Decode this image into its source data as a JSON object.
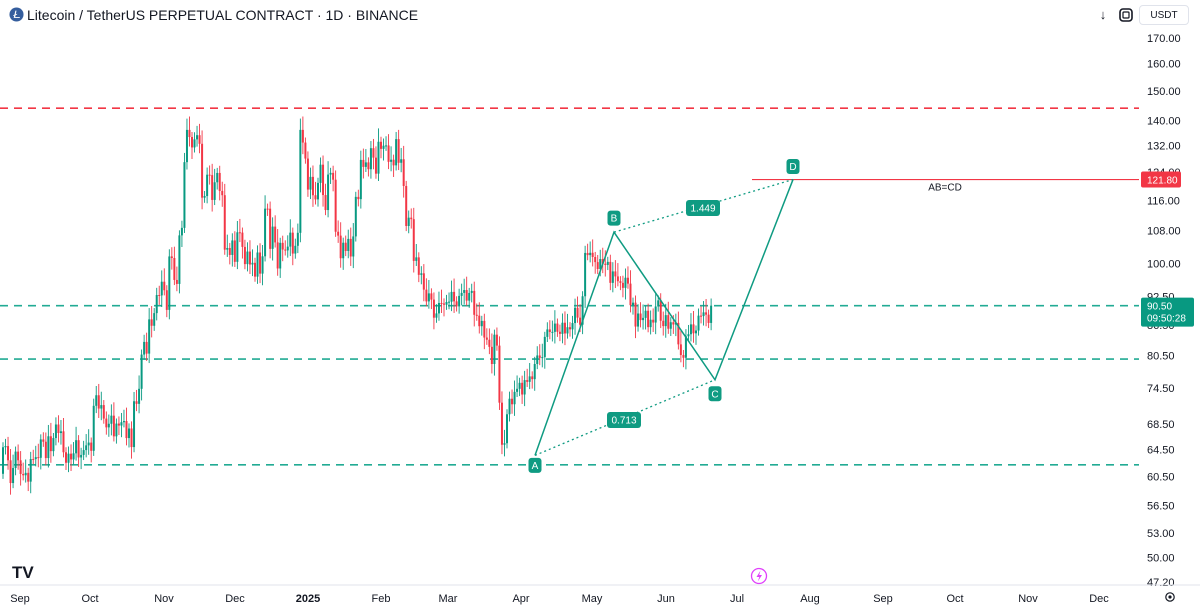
{
  "header": {
    "title": "Litecoin / TetherUS PERPETUAL CONTRACT · 1D · BINANCE",
    "arrow_button": "↓",
    "currency": "USDT"
  },
  "chart_data": {
    "type": "candlestick",
    "title": "Litecoin / TetherUS PERPETUAL CONTRACT · 1D · BINANCE",
    "price_axis": {
      "scale": "log",
      "range": [
        47.2,
        170.0
      ],
      "ticks": [
        "170.00",
        "160.00",
        "150.00",
        "140.00",
        "132.00",
        "124.00",
        "116.00",
        "108.00",
        "100.00",
        "92.50",
        "86.50",
        "80.50",
        "74.50",
        "68.50",
        "64.50",
        "60.50",
        "56.50",
        "53.00",
        "50.00",
        "47.20"
      ]
    },
    "time_axis": {
      "ticks": [
        "Sep",
        "Oct",
        "Nov",
        "Dec",
        "2025",
        "Feb",
        "Mar",
        "Apr",
        "May",
        "Jun",
        "Jul",
        "Aug",
        "Sep",
        "Oct",
        "Nov",
        "Dec"
      ]
    },
    "series": [
      {
        "type": "candles",
        "points": [
          [
            60.9,
            64.83
          ],
          [
            64.83,
            65.01
          ],
          [
            65.01,
            62.87
          ],
          [
            62.87,
            59.59
          ],
          [
            59.59,
            61.74
          ],
          [
            61.74,
            64.17
          ],
          [
            64.17,
            62.87
          ],
          [
            62.87,
            60.88
          ],
          [
            60.88,
            60.69
          ],
          [
            60.69,
            61.04
          ],
          [
            61.04,
            59.79
          ],
          [
            59.79,
            63.06
          ],
          [
            63.06,
            63.05
          ],
          [
            63.05,
            63.34
          ],
          [
            63.34,
            63.24
          ],
          [
            63.24,
            66.04
          ],
          [
            66.04,
            65.68
          ],
          [
            65.68,
            63.2
          ],
          [
            63.2,
            66.53
          ],
          [
            66.53,
            64.24
          ],
          [
            64.24,
            66.25
          ],
          [
            66.25,
            68.4
          ],
          [
            68.4,
            67.04
          ],
          [
            67.04,
            67.31
          ],
          [
            67.31,
            64.07
          ],
          [
            64.07,
            62.51
          ],
          [
            62.51,
            63.86
          ],
          [
            63.86,
            63.0
          ],
          [
            63.0,
            63.91
          ],
          [
            63.91,
            65.92
          ],
          [
            65.92,
            63.29
          ],
          [
            63.29,
            63.67
          ],
          [
            63.67,
            64.4
          ],
          [
            64.4,
            65.12
          ],
          [
            65.12,
            65.55
          ],
          [
            65.55,
            64.29
          ],
          [
            64.29,
            71.48
          ],
          [
            71.48,
            73.28
          ],
          [
            73.28,
            71.02
          ],
          [
            71.02,
            71.6
          ],
          [
            71.6,
            69.36
          ],
          [
            69.36,
            67.94
          ],
          [
            67.94,
            68.52
          ],
          [
            68.52,
            69.84
          ],
          [
            69.84,
            66.52
          ],
          [
            66.52,
            68.55
          ],
          [
            68.55,
            68.23
          ],
          [
            68.23,
            68.77
          ],
          [
            68.77,
            68.96
          ],
          [
            68.96,
            66.25
          ],
          [
            66.25,
            67.76
          ],
          [
            67.76,
            64.86
          ],
          [
            64.86,
            72.25
          ],
          [
            72.25,
            71.81
          ],
          [
            71.81,
            74.4
          ],
          [
            74.4,
            80.65
          ],
          [
            80.65,
            83.09
          ],
          [
            83.09,
            80.83
          ],
          [
            80.83,
            87.62
          ],
          [
            87.62,
            86.31
          ],
          [
            86.31,
            88.92
          ],
          [
            88.92,
            92.8
          ],
          [
            92.8,
            92.71
          ],
          [
            92.71,
            95.75
          ],
          [
            95.75,
            93.84
          ],
          [
            93.84,
            89.6
          ],
          [
            89.6,
            101.62
          ],
          [
            101.62,
            101.25
          ],
          [
            101.25,
            96.15
          ],
          [
            96.15,
            95.25
          ],
          [
            95.25,
            106.79
          ],
          [
            106.79,
            108.7
          ],
          [
            108.7,
            126.89
          ],
          [
            126.89,
            136.91
          ],
          [
            136.91,
            134.63
          ],
          [
            134.63,
            131.37
          ],
          [
            131.37,
            133.89
          ],
          [
            133.89,
            135.22
          ],
          [
            135.22,
            132.5
          ],
          [
            132.5,
            116.71
          ],
          [
            116.71,
            117.16
          ],
          [
            117.16,
            123.2
          ],
          [
            123.2,
            123.07
          ],
          [
            123.07,
            116.09
          ],
          [
            116.09,
            121.02
          ],
          [
            121.02,
            123.71
          ],
          [
            123.71,
            118.57
          ],
          [
            118.57,
            117.39
          ],
          [
            117.39,
            103.26
          ],
          [
            103.26,
            103.66
          ],
          [
            103.66,
            101.98
          ],
          [
            101.98,
            105.52
          ],
          [
            105.52,
            100.34
          ],
          [
            100.34,
            107.57
          ],
          [
            107.57,
            107.49
          ],
          [
            107.49,
            103.93
          ],
          [
            103.93,
            99.8
          ],
          [
            99.8,
            102.8
          ],
          [
            102.8,
            99.71
          ],
          [
            99.71,
            100.11
          ],
          [
            100.11,
            96.9
          ],
          [
            96.9,
            102.57
          ],
          [
            102.57,
            97.59
          ],
          [
            97.59,
            101.65
          ],
          [
            101.65,
            113.73
          ],
          [
            113.73,
            113.72
          ],
          [
            113.72,
            103.45
          ],
          [
            103.45,
            109.02
          ],
          [
            109.02,
            105.04
          ],
          [
            105.04,
            98.78
          ],
          [
            98.78,
            104.93
          ],
          [
            104.93,
            103.28
          ],
          [
            103.28,
            103.08
          ],
          [
            103.08,
            104.0
          ],
          [
            104.0,
            107.48
          ],
          [
            107.48,
            102.31
          ],
          [
            102.31,
            104.2
          ],
          [
            104.2,
            107.44
          ],
          [
            107.44,
            136.92
          ],
          [
            136.92,
            132.89
          ],
          [
            132.89,
            127.97
          ],
          [
            127.97,
            118.95
          ],
          [
            118.95,
            122.57
          ],
          [
            122.57,
            117.38
          ],
          [
            117.38,
            116.24
          ],
          [
            116.24,
            120.85
          ],
          [
            120.85,
            126.14
          ],
          [
            126.14,
            117.43
          ],
          [
            117.43,
            113.36
          ],
          [
            113.36,
            123.24
          ],
          [
            123.24,
            123.73
          ],
          [
            123.73,
            121.76
          ],
          [
            121.76,
            107.71
          ],
          [
            107.71,
            106.73
          ],
          [
            106.73,
            101.19
          ],
          [
            101.19,
            104.96
          ],
          [
            104.96,
            102.94
          ],
          [
            102.94,
            105.91
          ],
          [
            105.91,
            101.61
          ],
          [
            101.61,
            106.53
          ],
          [
            106.53,
            116.93
          ],
          [
            116.93,
            116.31
          ],
          [
            116.31,
            127.57
          ],
          [
            127.57,
            125.49
          ],
          [
            125.49,
            126.82
          ],
          [
            126.82,
            124.8
          ],
          [
            124.8,
            131.14
          ],
          [
            131.14,
            128.25
          ],
          [
            128.25,
            123.5
          ],
          [
            123.5,
            133.14
          ],
          [
            133.14,
            130.93
          ],
          [
            130.93,
            131.91
          ],
          [
            131.91,
            131.99
          ],
          [
            131.99,
            126.99
          ],
          [
            126.99,
            127.63
          ],
          [
            127.63,
            125.94
          ],
          [
            125.94,
            133.97
          ],
          [
            133.97,
            126.71
          ],
          [
            126.71,
            127.76
          ],
          [
            127.76,
            119.97
          ],
          [
            119.97,
            109.18
          ],
          [
            109.18,
            111.34
          ],
          [
            111.34,
            110.95
          ],
          [
            110.95,
            100.56
          ],
          [
            100.56,
            101.4
          ],
          [
            101.4,
            97.31
          ],
          [
            97.31,
            97.66
          ],
          [
            97.66,
            93.98
          ],
          [
            93.98,
            91.41
          ],
          [
            91.41,
            93.15
          ],
          [
            93.15,
            91.8
          ],
          [
            91.8,
            87.97
          ],
          [
            87.97,
            88.86
          ],
          [
            88.86,
            91.07
          ],
          [
            91.07,
            90.96
          ],
          [
            90.96,
            90.7
          ],
          [
            90.7,
            91.28
          ],
          [
            91.28,
            91.35
          ],
          [
            91.35,
            93.48
          ],
          [
            93.48,
            91.42
          ],
          [
            91.42,
            90.34
          ],
          [
            90.34,
            92.6
          ],
          [
            92.6,
            93.26
          ],
          [
            93.26,
            93.89
          ],
          [
            93.89,
            91.58
          ],
          [
            91.58,
            93.25
          ],
          [
            93.25,
            93.7
          ],
          [
            93.7,
            88.57
          ],
          [
            88.57,
            88.39
          ],
          [
            88.39,
            86.22
          ],
          [
            86.22,
            87.31
          ],
          [
            87.31,
            83.95
          ],
          [
            83.95,
            83.52
          ],
          [
            83.52,
            82.13
          ],
          [
            82.13,
            78.88
          ],
          [
            78.88,
            84.52
          ],
          [
            84.52,
            82.37
          ],
          [
            82.37,
            72.01
          ],
          [
            72.01,
            65.22
          ],
          [
            65.22,
            65.45
          ],
          [
            65.45,
            70.07
          ],
          [
            70.07,
            72.68
          ],
          [
            72.68,
            71.74
          ],
          [
            71.74,
            73.87
          ],
          [
            73.87,
            74.4
          ],
          [
            74.4,
            75.46
          ],
          [
            75.46,
            73.41
          ],
          [
            73.41,
            75.94
          ],
          [
            75.94,
            75.63
          ],
          [
            75.63,
            76.61
          ],
          [
            76.61,
            76.11
          ],
          [
            76.11,
            78.88
          ],
          [
            78.88,
            80.48
          ],
          [
            80.48,
            80.02
          ],
          [
            80.02,
            80.17
          ],
          [
            80.17,
            84.08
          ],
          [
            84.08,
            85.57
          ],
          [
            85.57,
            85.05
          ],
          [
            85.05,
            85.08
          ],
          [
            85.08,
            86.76
          ],
          [
            86.76,
            85.1
          ],
          [
            85.1,
            84.68
          ],
          [
            84.68,
            86.93
          ],
          [
            86.93,
            84.76
          ],
          [
            84.76,
            86.02
          ],
          [
            86.02,
            85.59
          ],
          [
            85.59,
            86.86
          ],
          [
            86.86,
            90.04
          ],
          [
            90.04,
            87.98
          ],
          [
            87.98,
            86.53
          ],
          [
            86.53,
            92.52
          ],
          [
            92.52,
            102.46
          ],
          [
            102.46,
            101.94
          ],
          [
            101.94,
            102.5
          ],
          [
            102.5,
            101.49
          ],
          [
            101.49,
            100.27
          ],
          [
            100.27,
            98.66
          ],
          [
            98.66,
            101.0
          ],
          [
            101.0,
            99.9
          ],
          [
            99.9,
            99.61
          ],
          [
            99.61,
            100.33
          ],
          [
            100.33,
            95.49
          ],
          [
            95.49,
            98.1
          ],
          [
            98.1,
            96.95
          ],
          [
            96.95,
            95.86
          ],
          [
            95.86,
            95.49
          ],
          [
            95.49,
            94.37
          ],
          [
            94.37,
            96.65
          ],
          [
            96.65,
            95.32
          ],
          [
            95.32,
            90.61
          ],
          [
            90.61,
            91.14
          ],
          [
            91.14,
            86.15
          ],
          [
            86.15,
            88.84
          ],
          [
            88.84,
            87.47
          ],
          [
            87.47,
            87.93
          ],
          [
            87.93,
            89.42
          ],
          [
            89.42,
            86.03
          ],
          [
            86.03,
            87.55
          ],
          [
            87.55,
            86.97
          ],
          [
            86.97,
            90.32
          ],
          [
            90.32,
            91.63
          ],
          [
            91.63,
            87.33
          ],
          [
            87.33,
            86.24
          ],
          [
            86.24,
            88.5
          ],
          [
            88.5,
            85.71
          ],
          [
            85.71,
            87.03
          ],
          [
            87.03,
            86.57
          ],
          [
            86.57,
            86.9
          ],
          [
            86.9,
            82.61
          ],
          [
            82.61,
            80.56
          ],
          [
            80.56,
            80.05
          ],
          [
            80.05,
            84.2
          ],
          [
            84.2,
            84.61
          ],
          [
            84.61,
            86.59
          ],
          [
            86.59,
            84.79
          ],
          [
            84.79,
            85.35
          ],
          [
            85.35,
            88.39
          ],
          [
            88.39,
            88.3
          ],
          [
            88.3,
            89.08
          ],
          [
            89.08,
            88.6
          ],
          [
            88.6,
            86.89
          ],
          [
            86.89,
            90.5
          ]
        ]
      }
    ],
    "horizontal_levels": [
      {
        "price": 144.1,
        "style": "dashed",
        "color": "#f23645"
      },
      {
        "price": 90.5,
        "style": "dashed",
        "color": "#22ab94"
      },
      {
        "price": 79.8,
        "style": "dashed",
        "color": "#22ab94"
      },
      {
        "price": 62.2,
        "style": "dashed",
        "color": "#22ab94"
      },
      {
        "price": 121.8,
        "style": "solid",
        "color": "#f23645"
      }
    ],
    "abcd_pattern": {
      "points": [
        {
          "label": "A",
          "price": 63.6
        },
        {
          "label": "B",
          "price": 107.6
        },
        {
          "label": "C",
          "price": 76.0
        },
        {
          "label": "D",
          "price": 121.8
        }
      ],
      "ratios": {
        "bc": "0.713",
        "cd": "1.449"
      },
      "target_label": "AB=CD"
    },
    "price_tags": {
      "target": "121.80",
      "last": "90.50",
      "countdown": "09:50:28"
    },
    "colors": {
      "up": "#089981",
      "down": "#f23645",
      "pattern": "#0f9b82",
      "text": "#131722"
    }
  }
}
